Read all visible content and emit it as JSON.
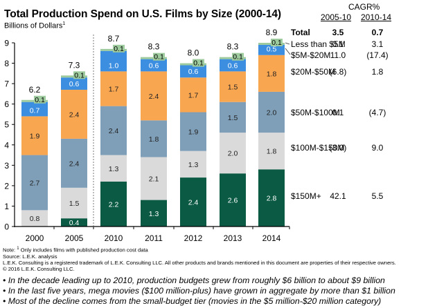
{
  "chart_data": {
    "type": "bar",
    "stacked": true,
    "title": "Total Production Spend on U.S. Films by Size (2000-14)",
    "subtitle": "Billions of Dollars",
    "subtitle_footnote": "1",
    "xlabel": "",
    "ylabel": "Billions of Dollars",
    "ylim": [
      0,
      9
    ],
    "yticks": [
      "0",
      "1",
      "2",
      "3",
      "4",
      "5",
      "6",
      "7",
      "8",
      "9"
    ],
    "grid": false,
    "categories": [
      "2000",
      "2005",
      "2010",
      "2011",
      "2012",
      "2013",
      "2014"
    ],
    "separator_after_category": "2005",
    "totals": [
      "6.2",
      "7.3",
      "8.7",
      "8.3",
      "8.0",
      "8.3",
      "8.9"
    ],
    "series": [
      {
        "name": "$150M+",
        "color": "#0b5a43",
        "label_color": "#ffffff",
        "values": [
          0,
          0.4,
          2.2,
          1.3,
          2.4,
          2.6,
          2.8
        ],
        "labels": [
          "",
          "0.4",
          "2.2",
          "1.3",
          "2.4",
          "2.6",
          "2.8"
        ]
      },
      {
        "name": "$100M-$150M",
        "color": "#dadada",
        "label_color": "#222222",
        "values": [
          0.8,
          1.5,
          1.3,
          2.1,
          1.3,
          2.0,
          1.8
        ],
        "labels": [
          "0.8",
          "1.5",
          "1.3",
          "2.1",
          "1.3",
          "2.0",
          "1.8"
        ]
      },
      {
        "name": "$50M-$100M",
        "color": "#7f9fb8",
        "label_color": "#222222",
        "values": [
          2.7,
          2.4,
          2.4,
          1.8,
          1.9,
          1.5,
          2.0
        ],
        "labels": [
          "2.7",
          "2.4",
          "2.4",
          "1.8",
          "1.9",
          "1.5",
          "2.0"
        ]
      },
      {
        "name": "$20M-$50M",
        "color": "#f9a651",
        "label_color": "#222222",
        "values": [
          1.9,
          2.4,
          1.7,
          2.4,
          1.7,
          1.5,
          1.8
        ],
        "labels": [
          "1.9",
          "2.4",
          "1.7",
          "2.4",
          "1.7",
          "1.5",
          "1.8"
        ]
      },
      {
        "name": "$5M-$20M",
        "color": "#3c8ee0",
        "label_color": "#ffffff",
        "values": [
          0.7,
          0.6,
          1.0,
          0.6,
          0.6,
          0.6,
          0.5
        ],
        "labels": [
          "0.7",
          "0.6",
          "1.0",
          "0.6",
          "0.6",
          "0.6",
          "0.5"
        ]
      },
      {
        "name": "Less than $5M",
        "color": "#9ecb9e",
        "label_color": "#000000",
        "values": [
          0.1,
          0.1,
          0.1,
          0.1,
          0.1,
          0.1,
          0.1
        ],
        "labels": [
          "0.1",
          "0.1",
          "0.1",
          "0.1",
          "0.1",
          "0.1",
          "0.1"
        ]
      }
    ],
    "legend_placement": "right",
    "cagr_table": {
      "title": "CAGR%",
      "columns": [
        "2005-10",
        "2010-14"
      ],
      "rows": [
        {
          "label": "Total",
          "bold": true,
          "values": [
            "3.5",
            "0.7"
          ]
        },
        {
          "label": "Less than $5M",
          "bold": false,
          "values": [
            "0.1",
            "3.1"
          ]
        },
        {
          "label": "$5M-$20M",
          "bold": false,
          "values": [
            "11.0",
            "(17.4)"
          ]
        },
        {
          "label": "$20M-$50M",
          "bold": false,
          "values": [
            "(6.8)",
            "1.8"
          ]
        },
        {
          "label": "$50M-$100M",
          "bold": false,
          "values": [
            "0.1",
            "(4.7)"
          ]
        },
        {
          "label": "$100M-$150M",
          "bold": false,
          "values": [
            "(3.0)",
            "9.0"
          ]
        },
        {
          "label": "$150M+",
          "bold": false,
          "values": [
            "42.1",
            "5.5"
          ]
        }
      ]
    }
  },
  "notes": {
    "note_prefix": "Note: ",
    "note_sup": "1",
    "note_text": " Only includes films with published production cost data",
    "source": "Source: L.E.K. analysis",
    "trademark": "L.E.K. Consulting is a registered trademark of L.E.K. Consulting LLC. All other products and brands mentioned in this document are properties of their respective owners.",
    "copyright": "© 2016 L.E.K. Consulting LLC."
  },
  "bullets": [
    "• In the decade leading up to 2010, production budgets grew from roughly $6 billion to about $9 billion",
    "• In the last five years, mega movies ($100 million-plus) have grown in aggregate by more than $1 billion",
    "• Most of the decline comes from the small-budget tier (movies in the $5 million-$20 million category)"
  ]
}
